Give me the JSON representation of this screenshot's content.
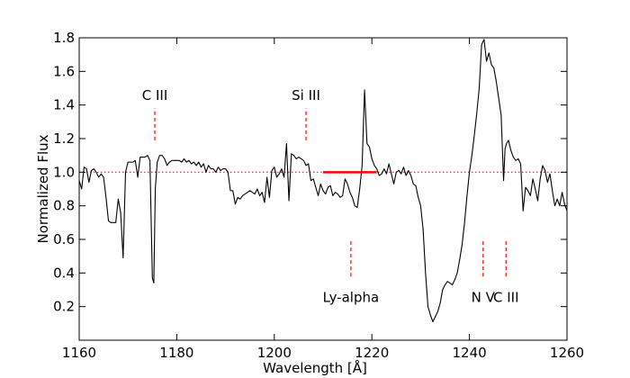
{
  "chart_data": {
    "type": "line",
    "xlabel": "Wavelength [Å]",
    "ylabel": "Normalized Flux",
    "xlim": [
      1160,
      1260
    ],
    "ylim": [
      0.0,
      1.8
    ],
    "xticks": [
      "1160",
      "1180",
      "1200",
      "1220",
      "1240",
      "1260"
    ],
    "yticks": [
      "0.2",
      "0.4",
      "0.6",
      "0.8",
      "1.0",
      "1.2",
      "1.4",
      "1.6",
      "1.8"
    ],
    "grid": false,
    "reference_line": {
      "y": 1.0,
      "color": "#d62728",
      "style": "dotted"
    },
    "continuum_segment": {
      "x": [
        1210,
        1221
      ],
      "y": 1.0,
      "color": "#ff0000"
    },
    "annotations": [
      {
        "label": "C III",
        "x": 1175.5,
        "line_y": [
          1.19,
          1.38
        ],
        "label_y": 1.43,
        "label_pos": "above"
      },
      {
        "label": "Si III",
        "x": 1206.5,
        "line_y": [
          1.19,
          1.38
        ],
        "label_y": 1.43,
        "label_pos": "above"
      },
      {
        "label": "Ly-alpha",
        "x": 1215.7,
        "line_y": [
          0.38,
          0.59
        ],
        "label_y": 0.28,
        "label_pos": "below"
      },
      {
        "label": "N V",
        "x": 1242.8,
        "line_y": [
          0.38,
          0.59
        ],
        "label_y": 0.28,
        "label_pos": "below"
      },
      {
        "label": "C III",
        "x": 1247.5,
        "line_y": [
          0.38,
          0.59
        ],
        "label_y": 0.28,
        "label_pos": "below"
      }
    ],
    "series": [
      {
        "color": "#000000",
        "x": [
          1160,
          1160.5,
          1161,
          1161.5,
          1162,
          1162.5,
          1163,
          1163.5,
          1164,
          1164.5,
          1165,
          1165.5,
          1166,
          1166.5,
          1167,
          1167.5,
          1168,
          1168.5,
          1169,
          1169.5,
          1170,
          1170.5,
          1171,
          1171.5,
          1172,
          1172.5,
          1173,
          1173.5,
          1174,
          1174.5,
          1175,
          1175.3,
          1175.6,
          1176,
          1176.5,
          1177,
          1177.5,
          1178,
          1178.5,
          1179,
          1179.5,
          1180,
          1180.5,
          1181,
          1181.5,
          1182,
          1182.5,
          1183,
          1183.5,
          1184,
          1184.5,
          1185,
          1185.5,
          1186,
          1186.5,
          1187,
          1187.5,
          1188,
          1188.5,
          1189,
          1189.5,
          1190,
          1190.5,
          1191,
          1191.5,
          1192,
          1192.5,
          1193,
          1193.5,
          1194,
          1194.5,
          1195,
          1195.5,
          1196,
          1196.5,
          1197,
          1197.5,
          1198,
          1198.5,
          1199,
          1199.5,
          1200,
          1200.5,
          1201,
          1201.5,
          1202,
          1202.5,
          1203,
          1203.5,
          1204,
          1204.5,
          1205,
          1205.5,
          1206,
          1206.5,
          1207,
          1207.5,
          1208,
          1208.5,
          1209,
          1209.5,
          1210,
          1210.5,
          1211,
          1211.5,
          1212,
          1212.5,
          1213,
          1213.5,
          1214,
          1214.5,
          1215,
          1215.5,
          1216,
          1216.5,
          1217,
          1217.5,
          1218,
          1218.5,
          1219,
          1219.5,
          1220,
          1220.5,
          1221,
          1221.5,
          1222,
          1222.5,
          1223,
          1223.5,
          1224,
          1224.5,
          1225,
          1225.5,
          1226,
          1226.5,
          1227,
          1227.5,
          1228,
          1228.5,
          1229,
          1229.5,
          1230,
          1230.5,
          1231,
          1231.5,
          1232,
          1232.5,
          1233,
          1233.5,
          1234,
          1234.5,
          1235,
          1235.5,
          1236,
          1236.5,
          1237,
          1237.5,
          1238,
          1238.5,
          1239,
          1239.5,
          1240,
          1240.5,
          1241,
          1241.5,
          1242,
          1242.5,
          1243,
          1243.5,
          1244,
          1244.5,
          1245,
          1245.5,
          1246,
          1246.5,
          1247,
          1247.3,
          1247.6,
          1248,
          1248.5,
          1249,
          1249.5,
          1250,
          1250.5,
          1251,
          1251.5,
          1252,
          1252.5,
          1253,
          1253.5,
          1254,
          1254.5,
          1255,
          1255.5,
          1256,
          1256.5,
          1257,
          1257.5,
          1258,
          1258.5,
          1259,
          1259.5,
          1260
        ],
        "y": [
          0.95,
          0.9,
          1.03,
          1.02,
          0.94,
          1.01,
          1.02,
          1.0,
          0.97,
          0.99,
          0.97,
          0.85,
          0.71,
          0.7,
          0.7,
          0.7,
          0.84,
          0.76,
          0.49,
          1.0,
          1.06,
          1.06,
          1.06,
          1.07,
          0.97,
          1.09,
          1.09,
          1.09,
          1.1,
          1.07,
          0.37,
          0.34,
          0.9,
          1.06,
          1.1,
          1.1,
          1.08,
          1.04,
          1.06,
          1.07,
          1.07,
          1.07,
          1.07,
          1.06,
          1.08,
          1.06,
          1.07,
          1.05,
          1.06,
          1.04,
          1.06,
          1.03,
          1.05,
          1.0,
          1.04,
          1.02,
          1.02,
          1.0,
          1.03,
          1.01,
          1.02,
          1.02,
          1.0,
          0.89,
          0.89,
          0.81,
          0.85,
          0.84,
          0.86,
          0.87,
          0.88,
          0.89,
          0.88,
          0.87,
          0.9,
          0.86,
          0.88,
          0.82,
          0.97,
          0.85,
          1.01,
          1.03,
          0.97,
          0.99,
          1.02,
          0.97,
          1.17,
          0.83,
          1.11,
          1.1,
          1.08,
          1.09,
          1.08,
          1.07,
          1.04,
          1.05,
          0.95,
          0.96,
          0.91,
          0.86,
          0.93,
          0.89,
          0.87,
          0.91,
          0.92,
          0.86,
          0.88,
          0.87,
          0.85,
          0.86,
          0.96,
          0.93,
          0.88,
          0.85,
          0.8,
          0.79,
          0.9,
          1.04,
          1.49,
          1.17,
          1.15,
          1.08,
          1.04,
          1.02,
          0.98,
          0.99,
          1.02,
          0.99,
          1.05,
          0.99,
          0.93,
          1.0,
          1.01,
          0.99,
          1.03,
          0.98,
          1.01,
          0.98,
          0.93,
          0.92,
          0.85,
          0.8,
          0.66,
          0.4,
          0.2,
          0.15,
          0.11,
          0.14,
          0.17,
          0.22,
          0.3,
          0.33,
          0.35,
          0.34,
          0.33,
          0.36,
          0.4,
          0.48,
          0.57,
          0.7,
          0.86,
          1.0,
          1.1,
          1.22,
          1.35,
          1.5,
          1.76,
          1.79,
          1.66,
          1.71,
          1.64,
          1.62,
          1.54,
          1.44,
          1.34,
          0.95,
          1.14,
          1.17,
          1.19,
          1.13,
          1.09,
          1.07,
          1.08,
          1.05,
          0.77,
          0.91,
          0.89,
          0.86,
          0.96,
          0.9,
          0.83,
          0.96,
          1.04,
          1.01,
          0.94,
          0.99,
          0.89,
          0.8,
          0.84,
          0.8,
          0.88,
          0.81,
          0.77
        ]
      }
    ]
  }
}
